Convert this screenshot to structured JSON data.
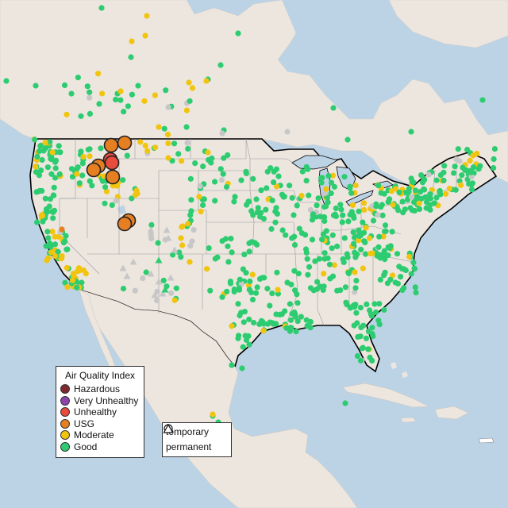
{
  "legend": {
    "title": "Air Quality Index",
    "categories": [
      {
        "key": "hazardous",
        "label": "Hazardous",
        "color": "#7e2a2f"
      },
      {
        "key": "very_unhealthy",
        "label": "Very Unhealthy",
        "color": "#8e44ad"
      },
      {
        "key": "unhealthy",
        "label": "Unhealthy",
        "color": "#e74c3c"
      },
      {
        "key": "usg",
        "label": "USG",
        "color": "#e67e22"
      },
      {
        "key": "moderate",
        "label": "Moderate",
        "color": "#f1c40f"
      },
      {
        "key": "good",
        "label": "Good",
        "color": "#2ecc71"
      }
    ],
    "no_data_color": "#c7c7c7"
  },
  "shape_legend": {
    "temporary": "temporary",
    "permanent": "permanent"
  },
  "colors": {
    "water": "#bcd3e6",
    "land": "#ece6df",
    "border": "#000000",
    "state_lines": "#9a9a9a"
  }
}
